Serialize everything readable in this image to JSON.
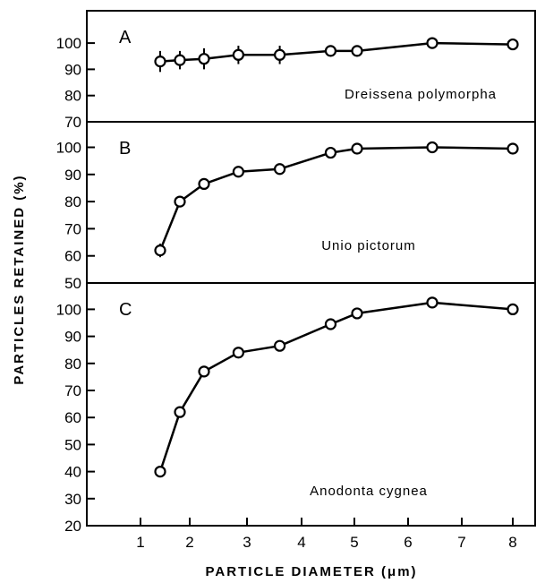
{
  "chart_data": {
    "type": "line",
    "ylabel": "PARTICLES RETAINED (%)",
    "xlabel": "PARTICLE DIAMETER (μm)",
    "x_ticks": [
      "1",
      "2",
      "3",
      "4",
      "5",
      "6",
      "7",
      "8"
    ],
    "panels": [
      {
        "panel_label": "A",
        "species": "Dreissena polymorpha",
        "ylim": [
          70,
          105
        ],
        "y_ticks": [
          "70",
          "80",
          "90",
          "100"
        ],
        "series": [
          {
            "x": [
              1.4,
              1.8,
              2.25,
              2.85,
              3.6,
              4.55,
              5.05,
              6.45,
              8
            ],
            "y": [
              93,
              93.5,
              94,
              95.5,
              95.5,
              97,
              97,
              100,
              99.5
            ],
            "error": [
              4,
              3.5,
              4,
              3.5,
              3.5,
              1.5,
              1.5,
              1,
              1
            ]
          }
        ]
      },
      {
        "panel_label": "B",
        "species": "Unio pictorum",
        "ylim": [
          50,
          105
        ],
        "y_ticks": [
          "50",
          "60",
          "70",
          "80",
          "90",
          "100"
        ],
        "series": [
          {
            "x": [
              1.4,
              1.8,
              2.25,
              2.85,
              3.6,
              4.55,
              5.05,
              6.45,
              8
            ],
            "y": [
              62,
              80,
              86.5,
              91,
              92,
              98,
              99.5,
              100,
              99.5
            ],
            "error": [
              2.5,
              1,
              1,
              1,
              1,
              1,
              1,
              1,
              1
            ]
          }
        ]
      },
      {
        "panel_label": "C",
        "species": "Anodonta cygnea",
        "ylim": [
          20,
          105
        ],
        "y_ticks": [
          "20",
          "30",
          "40",
          "50",
          "60",
          "70",
          "80",
          "90",
          "100"
        ],
        "series": [
          {
            "x": [
              1.4,
              1.8,
              2.25,
              2.85,
              3.6,
              4.55,
              5.05,
              6.45,
              8
            ],
            "y": [
              40,
              62,
              77,
              84,
              86.5,
              94.5,
              98.5,
              102.5,
              100
            ],
            "error": [
              0,
              0,
              0,
              0,
              0,
              0,
              0,
              0,
              0
            ]
          }
        ]
      }
    ]
  }
}
